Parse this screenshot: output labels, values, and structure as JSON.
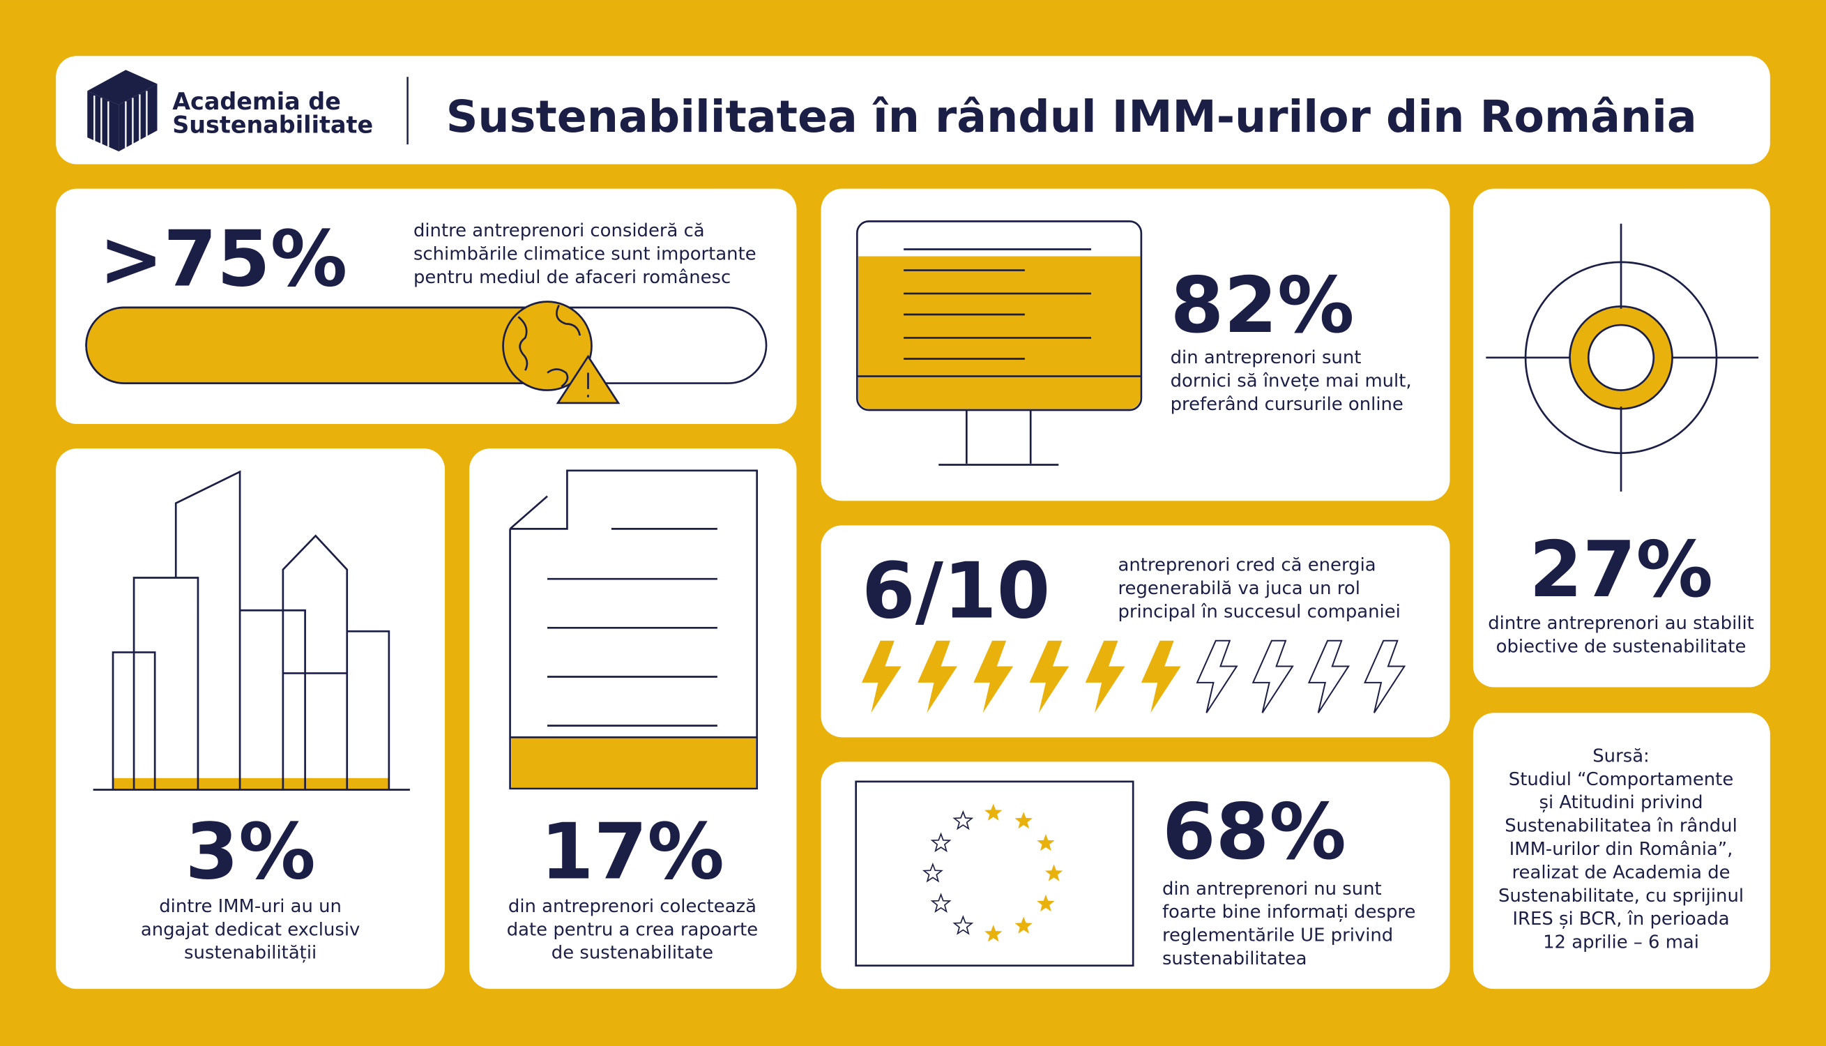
{
  "header": {
    "brand": [
      "Academia de",
      "Sustenabilitate"
    ],
    "title": "Sustenabilitatea în rândul IMM-urilor din România"
  },
  "cards": [
    {
      "stat": ">75%",
      "text": [
        "dintre antreprenori consideră că",
        "schimbările climatice sunt importante",
        "pentru mediul de afaceri românesc"
      ]
    },
    {
      "stat": "82%",
      "text": [
        "din antreprenori sunt",
        "dornici să învețe mai mult,",
        "preferând cursurile online"
      ]
    },
    {
      "stat": "27%",
      "text": [
        "dintre antreprenori au stabilit",
        "obiective de sustenabilitate"
      ]
    },
    {
      "stat": "6/10",
      "text": [
        "antreprenori cred că energia",
        "regenerabilă va juca un rol",
        "principal în succesul companiei"
      ]
    },
    {
      "stat": "3%",
      "text": [
        "dintre IMM-uri au un",
        "angajat dedicat exclusiv",
        "sustenabilității"
      ]
    },
    {
      "stat": "17%",
      "text": [
        "din antreprenori colectează",
        "date pentru a crea rapoarte",
        "de sustenabilitate"
      ]
    },
    {
      "stat": "68%",
      "text": [
        "din antreprenori nu sunt",
        "foarte bine informați despre",
        "reglementările UE privind",
        "sustenabilitatea"
      ]
    }
  ],
  "source": [
    "Sursă:",
    "Studiul “Comportamente",
    "și Atitudini privind",
    "Sustenabilitatea în rândul",
    "IMM-urilor din România”,",
    "realizat de Academia de",
    "Sustenabilitate, cu sprijinul",
    "IRES și BCR, în perioada",
    "12 aprilie – 6 mai"
  ]
}
